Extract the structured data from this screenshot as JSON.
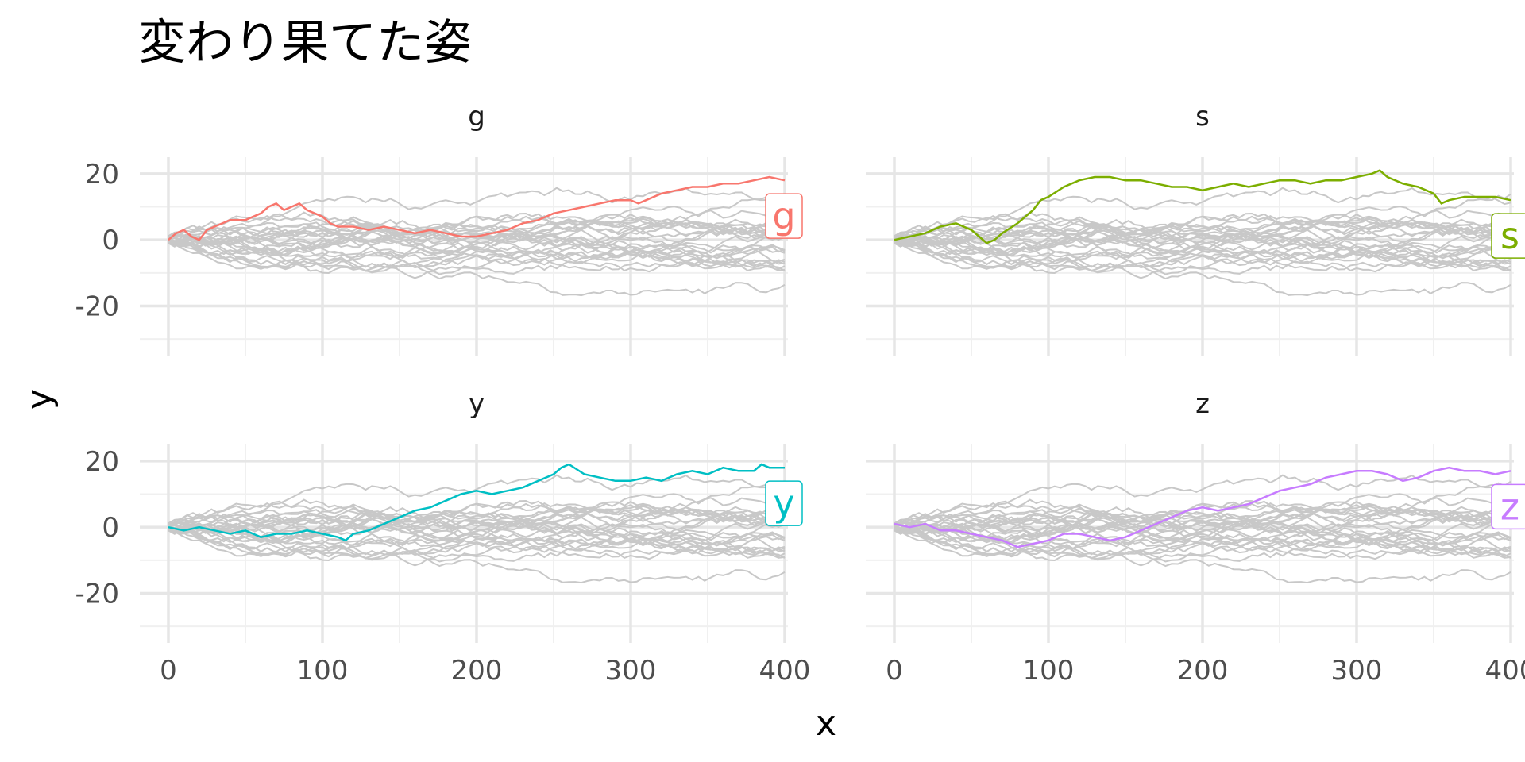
{
  "chart_data": {
    "type": "line",
    "title": "変わり果てた姿",
    "xlabel": "x",
    "ylabel": "y",
    "xlim": [
      0,
      400
    ],
    "ylim": [
      -35,
      25
    ],
    "x_ticks": [
      0,
      100,
      200,
      300,
      400
    ],
    "y_ticks": [
      -20,
      0,
      20
    ],
    "grid": true,
    "legend": "none",
    "facets": [
      {
        "name": "g",
        "color": "#F8766D",
        "points": [
          [
            0,
            0
          ],
          [
            5,
            2
          ],
          [
            10,
            3
          ],
          [
            15,
            1
          ],
          [
            20,
            0
          ],
          [
            25,
            3
          ],
          [
            30,
            4
          ],
          [
            40,
            6
          ],
          [
            50,
            6
          ],
          [
            60,
            8
          ],
          [
            65,
            10
          ],
          [
            70,
            11
          ],
          [
            75,
            9
          ],
          [
            80,
            10
          ],
          [
            85,
            11
          ],
          [
            90,
            9
          ],
          [
            95,
            8
          ],
          [
            100,
            7
          ],
          [
            105,
            5
          ],
          [
            110,
            4
          ],
          [
            120,
            4
          ],
          [
            130,
            3
          ],
          [
            140,
            4
          ],
          [
            150,
            3
          ],
          [
            160,
            2
          ],
          [
            170,
            3
          ],
          [
            180,
            2
          ],
          [
            190,
            1
          ],
          [
            200,
            1
          ],
          [
            210,
            2
          ],
          [
            220,
            3
          ],
          [
            230,
            5
          ],
          [
            240,
            6
          ],
          [
            250,
            8
          ],
          [
            260,
            9
          ],
          [
            270,
            10
          ],
          [
            280,
            11
          ],
          [
            290,
            12
          ],
          [
            300,
            12
          ],
          [
            305,
            11
          ],
          [
            310,
            12
          ],
          [
            320,
            14
          ],
          [
            330,
            15
          ],
          [
            340,
            16
          ],
          [
            350,
            16
          ],
          [
            360,
            17
          ],
          [
            370,
            17
          ],
          [
            380,
            18
          ],
          [
            390,
            19
          ],
          [
            400,
            18
          ]
        ]
      },
      {
        "name": "s",
        "color": "#7CAE00",
        "points": [
          [
            0,
            0
          ],
          [
            10,
            1
          ],
          [
            20,
            2
          ],
          [
            30,
            4
          ],
          [
            40,
            5
          ],
          [
            50,
            3
          ],
          [
            55,
            1
          ],
          [
            60,
            -1
          ],
          [
            65,
            0
          ],
          [
            70,
            2
          ],
          [
            80,
            5
          ],
          [
            90,
            9
          ],
          [
            95,
            12
          ],
          [
            100,
            13
          ],
          [
            110,
            16
          ],
          [
            120,
            18
          ],
          [
            130,
            19
          ],
          [
            140,
            19
          ],
          [
            150,
            18
          ],
          [
            160,
            18
          ],
          [
            170,
            17
          ],
          [
            180,
            16
          ],
          [
            190,
            16
          ],
          [
            200,
            15
          ],
          [
            210,
            16
          ],
          [
            220,
            17
          ],
          [
            230,
            16
          ],
          [
            240,
            17
          ],
          [
            250,
            18
          ],
          [
            260,
            18
          ],
          [
            270,
            17
          ],
          [
            280,
            18
          ],
          [
            290,
            18
          ],
          [
            300,
            19
          ],
          [
            310,
            20
          ],
          [
            315,
            21
          ],
          [
            320,
            19
          ],
          [
            330,
            17
          ],
          [
            340,
            16
          ],
          [
            350,
            14
          ],
          [
            355,
            11
          ],
          [
            360,
            12
          ],
          [
            370,
            13
          ],
          [
            380,
            13
          ],
          [
            390,
            13
          ],
          [
            400,
            12
          ]
        ]
      },
      {
        "name": "y",
        "color": "#00BFC4",
        "points": [
          [
            0,
            0
          ],
          [
            10,
            -1
          ],
          [
            20,
            0
          ],
          [
            30,
            -1
          ],
          [
            40,
            -2
          ],
          [
            50,
            -1
          ],
          [
            60,
            -3
          ],
          [
            70,
            -2
          ],
          [
            80,
            -2
          ],
          [
            90,
            -1
          ],
          [
            100,
            -2
          ],
          [
            110,
            -3
          ],
          [
            115,
            -4
          ],
          [
            120,
            -2
          ],
          [
            130,
            -1
          ],
          [
            140,
            1
          ],
          [
            150,
            3
          ],
          [
            160,
            5
          ],
          [
            170,
            6
          ],
          [
            180,
            8
          ],
          [
            190,
            10
          ],
          [
            200,
            11
          ],
          [
            210,
            10
          ],
          [
            220,
            11
          ],
          [
            230,
            12
          ],
          [
            240,
            14
          ],
          [
            250,
            16
          ],
          [
            255,
            18
          ],
          [
            260,
            19
          ],
          [
            270,
            16
          ],
          [
            280,
            15
          ],
          [
            290,
            14
          ],
          [
            300,
            14
          ],
          [
            310,
            15
          ],
          [
            320,
            14
          ],
          [
            330,
            16
          ],
          [
            340,
            17
          ],
          [
            350,
            16
          ],
          [
            360,
            18
          ],
          [
            370,
            17
          ],
          [
            380,
            17
          ],
          [
            385,
            19
          ],
          [
            390,
            18
          ],
          [
            400,
            18
          ]
        ]
      },
      {
        "name": "z",
        "color": "#C77CFF",
        "points": [
          [
            0,
            1
          ],
          [
            10,
            0
          ],
          [
            20,
            1
          ],
          [
            30,
            -1
          ],
          [
            40,
            -1
          ],
          [
            50,
            -2
          ],
          [
            60,
            -3
          ],
          [
            70,
            -4
          ],
          [
            80,
            -6
          ],
          [
            90,
            -5
          ],
          [
            100,
            -4
          ],
          [
            110,
            -2
          ],
          [
            120,
            -2
          ],
          [
            130,
            -3
          ],
          [
            140,
            -4
          ],
          [
            150,
            -3
          ],
          [
            160,
            -1
          ],
          [
            170,
            1
          ],
          [
            180,
            3
          ],
          [
            190,
            5
          ],
          [
            200,
            6
          ],
          [
            210,
            5
          ],
          [
            220,
            6
          ],
          [
            230,
            7
          ],
          [
            240,
            9
          ],
          [
            250,
            11
          ],
          [
            260,
            12
          ],
          [
            270,
            13
          ],
          [
            280,
            15
          ],
          [
            290,
            16
          ],
          [
            300,
            17
          ],
          [
            310,
            17
          ],
          [
            320,
            16
          ],
          [
            330,
            14
          ],
          [
            340,
            15
          ],
          [
            350,
            17
          ],
          [
            360,
            18
          ],
          [
            370,
            17
          ],
          [
            380,
            17
          ],
          [
            390,
            16
          ],
          [
            400,
            17
          ]
        ]
      }
    ]
  }
}
